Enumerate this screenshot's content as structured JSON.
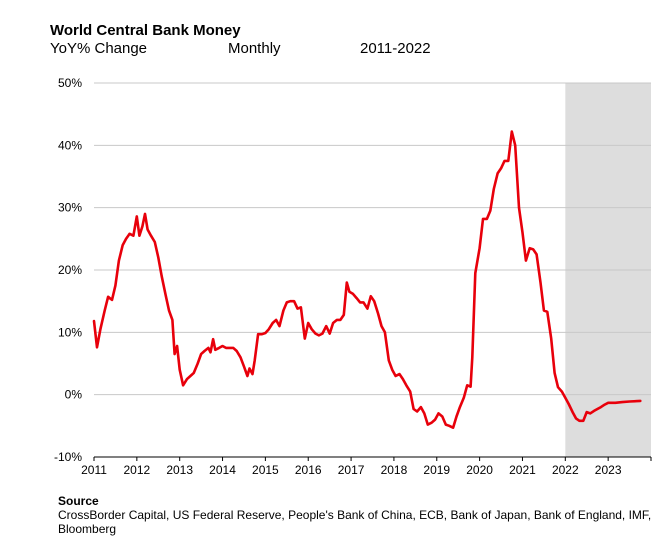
{
  "title": "World Central Bank Money",
  "subtitle": {
    "measure": "YoY% Change",
    "frequency": "Monthly",
    "period": "2011-2022"
  },
  "source": {
    "heading": "Source",
    "text": "CrossBorder Capital, US Federal Reserve, People's Bank of China, ECB, Bank of Japan, Bank of England, IMF, Bloomberg"
  },
  "colors": {
    "line": "#e8000b",
    "shade": "#dddddd",
    "grid": "#c8c8c8"
  },
  "chart_data": {
    "type": "line",
    "title": "World Central Bank Money",
    "ylim": [
      -10,
      50
    ],
    "xlim": [
      2011,
      2024
    ],
    "yticks": [
      -10,
      0,
      10,
      20,
      30,
      40,
      50
    ],
    "ytick_labels": [
      "-10%",
      "0%",
      "10%",
      "20%",
      "30%",
      "40%",
      "50%"
    ],
    "xticks": [
      2011,
      2012,
      2013,
      2014,
      2015,
      2016,
      2017,
      2018,
      2019,
      2020,
      2021,
      2022,
      2023
    ],
    "xtick_labels": [
      "2011",
      "2012",
      "2013",
      "2014",
      "2015",
      "2016",
      "2017",
      "2018",
      "2019",
      "2020",
      "2021",
      "2022",
      "2023"
    ],
    "grid": "horizontal",
    "shaded_range": [
      2022,
      2024
    ],
    "series": [
      {
        "points": [
          [
            2011.0,
            11.8
          ],
          [
            2011.07,
            7.6
          ],
          [
            2011.15,
            10.5
          ],
          [
            2011.25,
            13.5
          ],
          [
            2011.33,
            15.7
          ],
          [
            2011.42,
            15.2
          ],
          [
            2011.5,
            17.5
          ],
          [
            2011.58,
            21.5
          ],
          [
            2011.67,
            24.0
          ],
          [
            2011.75,
            25.0
          ],
          [
            2011.83,
            25.8
          ],
          [
            2011.92,
            25.5
          ],
          [
            2012.0,
            28.6
          ],
          [
            2012.06,
            25.5
          ],
          [
            2012.13,
            27.0
          ],
          [
            2012.19,
            29.0
          ],
          [
            2012.25,
            26.5
          ],
          [
            2012.33,
            25.5
          ],
          [
            2012.42,
            24.5
          ],
          [
            2012.5,
            22.0
          ],
          [
            2012.58,
            19.0
          ],
          [
            2012.67,
            16.0
          ],
          [
            2012.75,
            13.5
          ],
          [
            2012.83,
            12.0
          ],
          [
            2012.88,
            6.5
          ],
          [
            2012.94,
            7.8
          ],
          [
            2013.0,
            4.0
          ],
          [
            2013.08,
            1.5
          ],
          [
            2013.17,
            2.5
          ],
          [
            2013.25,
            3.0
          ],
          [
            2013.33,
            3.5
          ],
          [
            2013.42,
            5.0
          ],
          [
            2013.5,
            6.5
          ],
          [
            2013.58,
            7.0
          ],
          [
            2013.67,
            7.5
          ],
          [
            2013.72,
            6.8
          ],
          [
            2013.78,
            8.9
          ],
          [
            2013.83,
            7.2
          ],
          [
            2013.92,
            7.5
          ],
          [
            2014.0,
            7.8
          ],
          [
            2014.08,
            7.5
          ],
          [
            2014.17,
            7.5
          ],
          [
            2014.25,
            7.5
          ],
          [
            2014.33,
            7.0
          ],
          [
            2014.42,
            6.0
          ],
          [
            2014.5,
            4.5
          ],
          [
            2014.58,
            3.0
          ],
          [
            2014.63,
            4.2
          ],
          [
            2014.7,
            3.3
          ],
          [
            2014.75,
            5.5
          ],
          [
            2014.83,
            9.7
          ],
          [
            2014.92,
            9.7
          ],
          [
            2015.0,
            9.9
          ],
          [
            2015.08,
            10.5
          ],
          [
            2015.17,
            11.5
          ],
          [
            2015.25,
            12.0
          ],
          [
            2015.33,
            11.0
          ],
          [
            2015.42,
            13.5
          ],
          [
            2015.5,
            14.8
          ],
          [
            2015.58,
            15.0
          ],
          [
            2015.67,
            15.0
          ],
          [
            2015.75,
            13.8
          ],
          [
            2015.83,
            14.0
          ],
          [
            2015.92,
            9.0
          ],
          [
            2016.0,
            11.5
          ],
          [
            2016.08,
            10.5
          ],
          [
            2016.17,
            9.8
          ],
          [
            2016.25,
            9.5
          ],
          [
            2016.33,
            9.8
          ],
          [
            2016.42,
            11.0
          ],
          [
            2016.5,
            9.8
          ],
          [
            2016.58,
            11.5
          ],
          [
            2016.67,
            12.0
          ],
          [
            2016.75,
            12.0
          ],
          [
            2016.83,
            12.8
          ],
          [
            2016.9,
            18.0
          ],
          [
            2016.96,
            16.5
          ],
          [
            2017.04,
            16.2
          ],
          [
            2017.13,
            15.5
          ],
          [
            2017.21,
            14.8
          ],
          [
            2017.29,
            14.8
          ],
          [
            2017.38,
            13.8
          ],
          [
            2017.46,
            15.8
          ],
          [
            2017.54,
            15.0
          ],
          [
            2017.63,
            13.0
          ],
          [
            2017.71,
            11.0
          ],
          [
            2017.79,
            10.0
          ],
          [
            2017.88,
            5.5
          ],
          [
            2017.96,
            4.0
          ],
          [
            2018.04,
            3.0
          ],
          [
            2018.13,
            3.3
          ],
          [
            2018.21,
            2.5
          ],
          [
            2018.29,
            1.5
          ],
          [
            2018.38,
            0.5
          ],
          [
            2018.46,
            -2.3
          ],
          [
            2018.54,
            -2.7
          ],
          [
            2018.63,
            -2.0
          ],
          [
            2018.71,
            -3.0
          ],
          [
            2018.79,
            -4.8
          ],
          [
            2018.88,
            -4.5
          ],
          [
            2018.96,
            -4.0
          ],
          [
            2019.04,
            -3.0
          ],
          [
            2019.13,
            -3.5
          ],
          [
            2019.21,
            -4.8
          ],
          [
            2019.29,
            -5.0
          ],
          [
            2019.38,
            -5.3
          ],
          [
            2019.46,
            -3.5
          ],
          [
            2019.54,
            -2.0
          ],
          [
            2019.63,
            -0.5
          ],
          [
            2019.71,
            1.5
          ],
          [
            2019.79,
            1.3
          ],
          [
            2019.83,
            6.0
          ],
          [
            2019.9,
            19.5
          ],
          [
            2020.0,
            23.5
          ],
          [
            2020.08,
            28.2
          ],
          [
            2020.17,
            28.2
          ],
          [
            2020.25,
            29.5
          ],
          [
            2020.33,
            33.0
          ],
          [
            2020.42,
            35.5
          ],
          [
            2020.5,
            36.3
          ],
          [
            2020.58,
            37.5
          ],
          [
            2020.67,
            37.5
          ],
          [
            2020.75,
            42.2
          ],
          [
            2020.83,
            40.0
          ],
          [
            2020.92,
            30.0
          ],
          [
            2021.0,
            26.0
          ],
          [
            2021.08,
            21.5
          ],
          [
            2021.17,
            23.5
          ],
          [
            2021.25,
            23.3
          ],
          [
            2021.33,
            22.5
          ],
          [
            2021.42,
            18.0
          ],
          [
            2021.5,
            13.5
          ],
          [
            2021.58,
            13.3
          ],
          [
            2021.67,
            9.0
          ],
          [
            2021.75,
            3.5
          ],
          [
            2021.83,
            1.2
          ],
          [
            2021.92,
            0.5
          ],
          [
            2022.0,
            -0.5
          ],
          [
            2022.08,
            -1.5
          ],
          [
            2022.17,
            -2.8
          ],
          [
            2022.25,
            -3.8
          ],
          [
            2022.33,
            -4.2
          ],
          [
            2022.42,
            -4.2
          ],
          [
            2022.5,
            -2.8
          ],
          [
            2022.58,
            -3.0
          ],
          [
            2022.67,
            -2.6
          ],
          [
            2022.75,
            -2.3
          ],
          [
            2022.83,
            -2.0
          ],
          [
            2022.92,
            -1.6
          ],
          [
            2023.0,
            -1.3
          ],
          [
            2023.17,
            -1.3
          ],
          [
            2023.33,
            -1.2
          ],
          [
            2023.5,
            -1.1
          ],
          [
            2023.75,
            -1.0
          ]
        ]
      }
    ]
  }
}
